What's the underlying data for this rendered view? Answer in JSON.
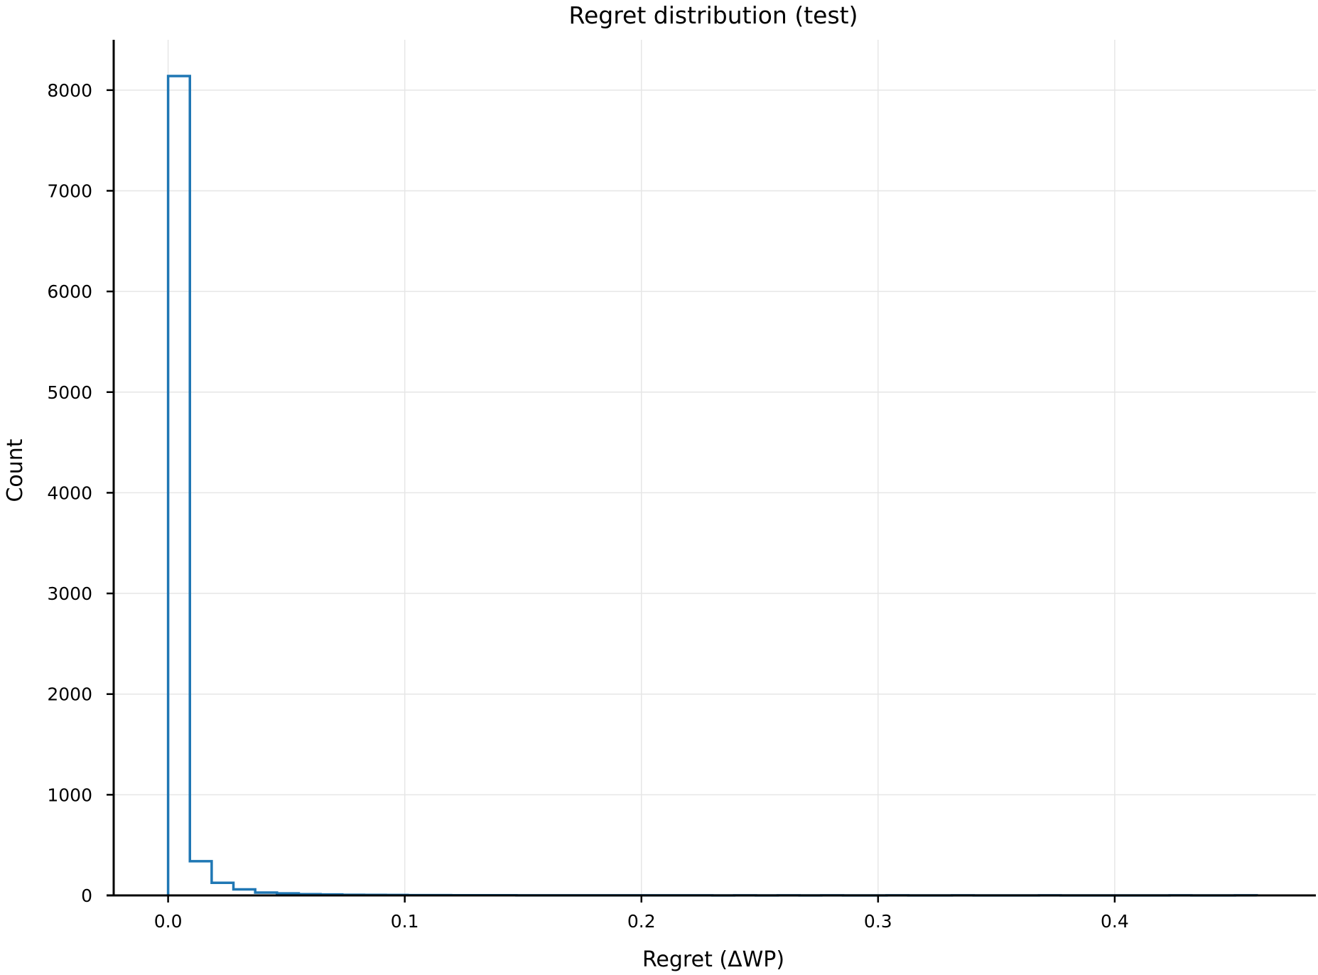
{
  "chart_data": {
    "type": "bar",
    "histogram": true,
    "title": "Regret distribution (test)",
    "xlabel": "Regret (ΔWP)",
    "ylabel": "Count",
    "xlim": [
      -0.023,
      0.485
    ],
    "ylim": [
      0,
      8500
    ],
    "xticks": [
      0.0,
      0.1,
      0.2,
      0.3,
      0.4
    ],
    "xtick_labels": [
      "0.0",
      "0.1",
      "0.2",
      "0.3",
      "0.4"
    ],
    "yticks": [
      0,
      1000,
      2000,
      3000,
      4000,
      5000,
      6000,
      7000,
      8000
    ],
    "ytick_labels": [
      "0",
      "1000",
      "2000",
      "3000",
      "4000",
      "5000",
      "6000",
      "7000",
      "8000"
    ],
    "grid": true,
    "series_color": "#1f77b4",
    "bin_edges": [
      0.0,
      0.0092,
      0.0184,
      0.0276,
      0.0368,
      0.046,
      0.0552,
      0.0644,
      0.0736,
      0.0828,
      0.092,
      0.1012,
      0.1104,
      0.1196,
      0.1288,
      0.138,
      0.1472,
      0.1564,
      0.1656,
      0.1748,
      0.184,
      0.1932,
      0.2024,
      0.2116,
      0.2208,
      0.23,
      0.2392,
      0.2484,
      0.2576,
      0.2668,
      0.276,
      0.2852,
      0.2944,
      0.3036,
      0.3128,
      0.322,
      0.3312,
      0.3404,
      0.3496,
      0.3588,
      0.368,
      0.3772,
      0.3864,
      0.3956,
      0.4048,
      0.414,
      0.4232,
      0.4324,
      0.4416,
      0.4508,
      0.46
    ],
    "counts": [
      8140,
      340,
      125,
      60,
      28,
      20,
      12,
      10,
      6,
      5,
      4,
      3,
      3,
      2,
      2,
      2,
      1,
      1,
      1,
      1,
      1,
      1,
      1,
      1,
      1,
      0,
      1,
      0,
      1,
      0,
      1,
      0,
      0,
      1,
      0,
      0,
      1,
      0,
      0,
      0,
      1,
      0,
      0,
      0,
      0,
      0,
      1,
      0,
      0,
      1
    ]
  }
}
